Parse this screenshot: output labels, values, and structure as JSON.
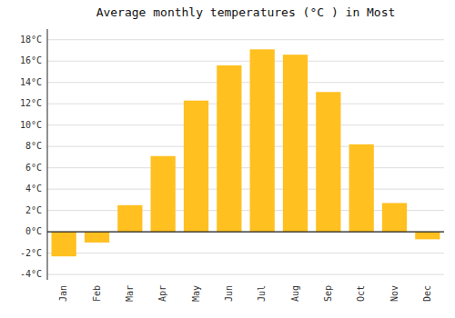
{
  "chart_data": {
    "type": "bar",
    "title": "Average monthly temperatures (°C ) in Most",
    "categories": [
      "Jan",
      "Feb",
      "Mar",
      "Apr",
      "May",
      "Jun",
      "Jul",
      "Aug",
      "Sep",
      "Oct",
      "Nov",
      "Dec"
    ],
    "values": [
      -2.3,
      -1.0,
      2.5,
      7.1,
      12.3,
      15.6,
      17.1,
      16.6,
      13.1,
      8.2,
      2.7,
      -0.7
    ],
    "color": "#FFC020",
    "ylim": [
      -4.5,
      19
    ],
    "yticks": [
      {
        "value": -4,
        "label": "-4°C"
      },
      {
        "value": -2,
        "label": "-2°C"
      },
      {
        "value": 0,
        "label": "0°C"
      },
      {
        "value": 2,
        "label": "2°C"
      },
      {
        "value": 4,
        "label": "4°C"
      },
      {
        "value": 6,
        "label": "6°C"
      },
      {
        "value": 8,
        "label": "8°C"
      },
      {
        "value": 10,
        "label": "10°C"
      },
      {
        "value": 12,
        "label": "12°C"
      },
      {
        "value": 14,
        "label": "14°C"
      },
      {
        "value": 16,
        "label": "16°C"
      },
      {
        "value": 18,
        "label": "18°C"
      }
    ],
    "grid": true
  }
}
